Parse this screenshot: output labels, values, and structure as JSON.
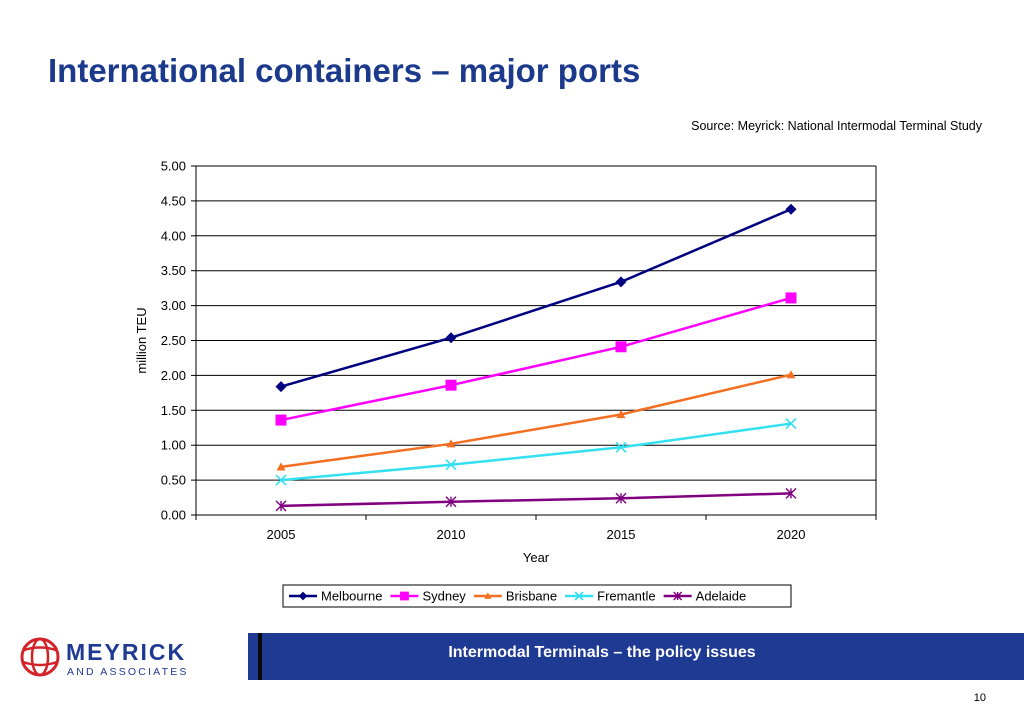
{
  "slide": {
    "title": "International containers – major ports",
    "source": "Source: Meyrick: National Intermodal Terminal Study",
    "footer_text": "Intermodal Terminals – the policy issues",
    "page_number": "10"
  },
  "logo": {
    "name": "MEYRICK",
    "sub": "AND ASSOCIATES",
    "icon": "globe-logo-icon",
    "color": "#d2232a"
  },
  "chart_data": {
    "type": "line",
    "title": "",
    "xlabel": "Year",
    "ylabel": "million TEU",
    "categories": [
      "2005",
      "2010",
      "2015",
      "2020"
    ],
    "ylim": [
      0,
      5
    ],
    "yticks": [
      "0.00",
      "0.50",
      "1.00",
      "1.50",
      "2.00",
      "2.50",
      "3.00",
      "3.50",
      "4.00",
      "4.50",
      "5.00"
    ],
    "grid": true,
    "legend": "bottom",
    "series": [
      {
        "name": "Melbourne",
        "values": [
          1.84,
          2.54,
          3.34,
          4.38
        ],
        "color": "#000080",
        "marker": "diamond"
      },
      {
        "name": "Sydney",
        "values": [
          1.36,
          1.86,
          2.41,
          3.11
        ],
        "color": "#ff00ff",
        "marker": "square"
      },
      {
        "name": "Brisbane",
        "values": [
          0.69,
          1.02,
          1.44,
          2.01
        ],
        "color": "#f36f21",
        "marker": "triangle"
      },
      {
        "name": "Fremantle",
        "values": [
          0.5,
          0.72,
          0.97,
          1.31
        ],
        "color": "#33e0f0",
        "marker": "x"
      },
      {
        "name": "Adelaide",
        "values": [
          0.13,
          0.19,
          0.24,
          0.31
        ],
        "color": "#800080",
        "marker": "star"
      }
    ]
  }
}
